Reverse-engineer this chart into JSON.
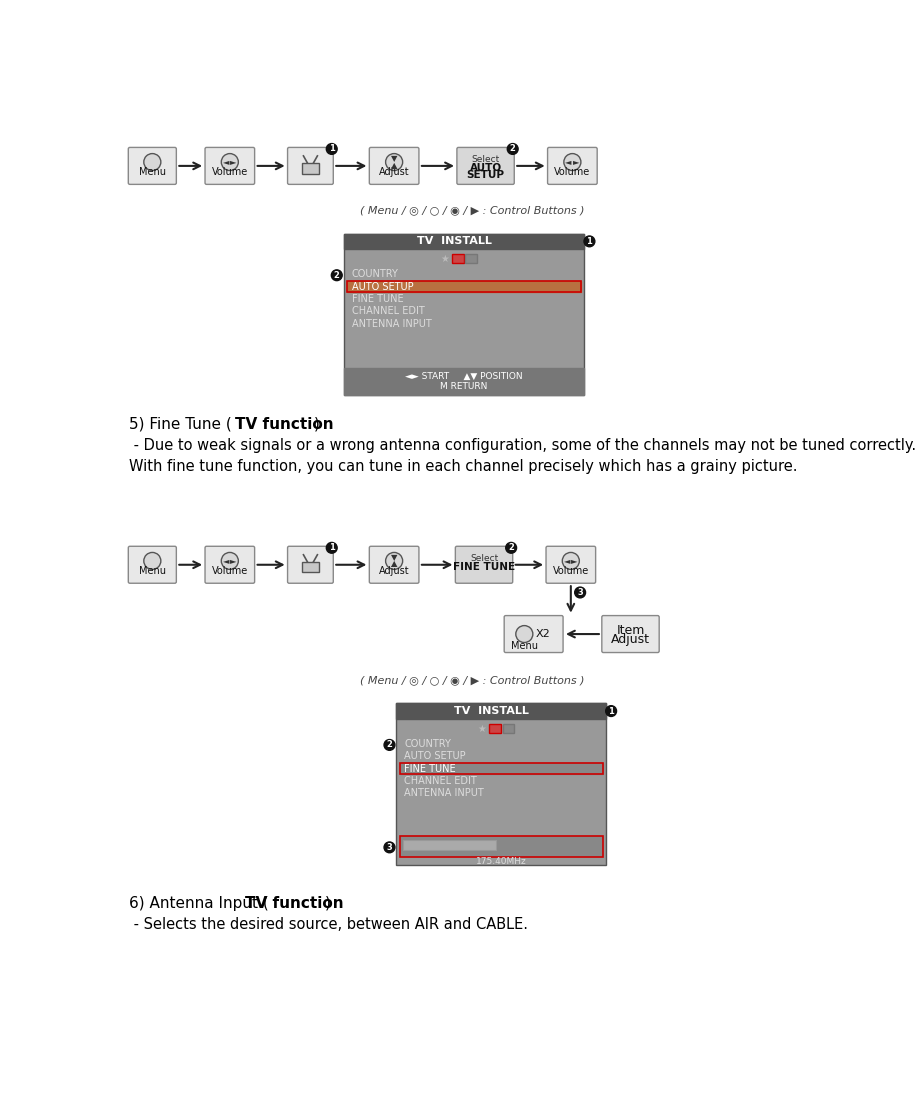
{
  "bg_color": "#ffffff",
  "menu_title": "TV  INSTALL",
  "menu_items": [
    "COUNTRY",
    "AUTO SETUP",
    "FINE TUNE",
    "CHANNEL EDIT",
    "ANTENNA INPUT"
  ],
  "menu_bottom1": "◄► START     ▲▼ POSITION",
  "menu_bottom2": "M RETURN",
  "freq_label": "175.40MHz",
  "control_buttons_label": "( Menu / ◎ / ○ / ◉ / ▶ : Control Buttons )"
}
